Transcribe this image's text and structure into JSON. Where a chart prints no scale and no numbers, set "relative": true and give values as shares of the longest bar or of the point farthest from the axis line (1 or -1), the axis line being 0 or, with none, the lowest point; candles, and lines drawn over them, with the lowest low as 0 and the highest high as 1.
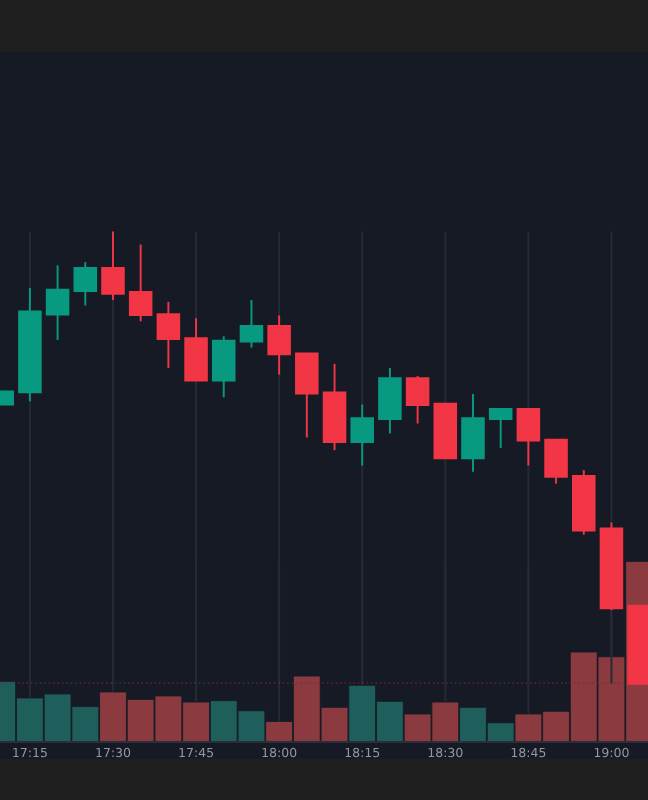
{
  "chart_data": [
    {
      "type": "candlestick",
      "relative": true,
      "tick_labels": false,
      "grid": "x",
      "x": [
        17.1667,
        17.25,
        17.3333,
        17.4167,
        17.5,
        17.5833,
        17.6667,
        17.75,
        17.8333,
        17.9167,
        18.0,
        18.0833,
        18.1667,
        18.25,
        18.3333,
        18.4167,
        18.5,
        18.5833,
        18.6667,
        18.75,
        18.8333,
        18.9167,
        19.0,
        19.0833
      ],
      "ohlc": [
        [
          0.618,
          0.645,
          0.618,
          0.645
        ],
        [
          0.645,
          0.875,
          0.624,
          0.822
        ],
        [
          0.817,
          0.925,
          0.76,
          0.87
        ],
        [
          0.869,
          0.932,
          0.836,
          0.918
        ],
        [
          0.918,
          1.0,
          0.848,
          0.863
        ],
        [
          0.865,
          0.971,
          0.801,
          0.816
        ],
        [
          0.816,
          0.844,
          0.698,
          0.763
        ],
        [
          0.763,
          0.808,
          0.671,
          0.671
        ],
        [
          0.671,
          0.768,
          0.633,
          0.757
        ],
        [
          0.757,
          0.848,
          0.743,
          0.79
        ],
        [
          0.79,
          0.814,
          0.683,
          0.729
        ],
        [
          0.729,
          0.729,
          0.544,
          0.642
        ],
        [
          0.643,
          0.707,
          0.516,
          0.535
        ],
        [
          0.535,
          0.617,
          0.482,
          0.586
        ],
        [
          0.586,
          0.698,
          0.553,
          0.674
        ],
        [
          0.674,
          0.68,
          0.575,
          0.617
        ],
        [
          0.618,
          0.618,
          0.499,
          0.499
        ],
        [
          0.499,
          0.64,
          0.468,
          0.586
        ],
        [
          0.586,
          0.609,
          0.521,
          0.606
        ],
        [
          0.606,
          0.609,
          0.482,
          0.538
        ],
        [
          0.538,
          0.538,
          0.442,
          0.458
        ],
        [
          0.458,
          0.472,
          0.329,
          0.339
        ],
        [
          0.342,
          0.356,
          0.162,
          0.167
        ],
        [
          0.171,
          0.171,
          0.0,
          0.0
        ]
      ],
      "colors": [
        "#089981",
        "#089981",
        "#089981",
        "#089981",
        "#f23645",
        "#f23645",
        "#f23645",
        "#f23645",
        "#089981",
        "#089981",
        "#f23645",
        "#f23645",
        "#f23645",
        "#089981",
        "#089981",
        "#f23645",
        "#f23645",
        "#089981",
        "#089981",
        "#f23645",
        "#f23645",
        "#f23645",
        "#f23645",
        "#f23645"
      ],
      "xlim": [
        17.16,
        19.11
      ],
      "xticks": [
        {
          "value": 17.25,
          "label": null
        },
        {
          "value": 17.5,
          "label": null
        },
        {
          "value": 17.75,
          "label": null
        },
        {
          "value": 18.0,
          "label": null
        },
        {
          "value": 18.25,
          "label": null
        },
        {
          "value": 18.5,
          "label": null
        },
        {
          "value": 18.75,
          "label": null
        },
        {
          "value": 19.0,
          "label": null
        }
      ],
      "ref_lines": [
        {
          "axis": "y",
          "value": 0.0,
          "color": "#7a2a35",
          "line_style": "dotted"
        }
      ]
    },
    {
      "type": "bar",
      "relative": true,
      "tick_labels": "x",
      "grid": "x",
      "x": [
        17.1667,
        17.25,
        17.3333,
        17.4167,
        17.5,
        17.5833,
        17.6667,
        17.75,
        17.8333,
        17.9167,
        18.0,
        18.0833,
        18.1667,
        18.25,
        18.3333,
        18.4167,
        18.5,
        18.5833,
        18.6667,
        18.75,
        18.8333,
        18.9167,
        19.0,
        19.0833
      ],
      "values": [
        0.336,
        0.244,
        0.266,
        0.196,
        0.277,
        0.236,
        0.255,
        0.221,
        0.229,
        0.173,
        0.114,
        0.365,
        0.192,
        0.314,
        0.225,
        0.155,
        0.221,
        0.192,
        0.107,
        0.155,
        0.17,
        0.498,
        0.472,
        1.0
      ],
      "colors": [
        "#1e5f5c",
        "#1e5f5c",
        "#1e5f5c",
        "#1e5f5c",
        "#8b3a40",
        "#8b3a40",
        "#8b3a40",
        "#8b3a40",
        "#1e5f5c",
        "#1e5f5c",
        "#8b3a40",
        "#8b3a40",
        "#8b3a40",
        "#1e5f5c",
        "#1e5f5c",
        "#8b3a40",
        "#8b3a40",
        "#1e5f5c",
        "#1e5f5c",
        "#8b3a40",
        "#8b3a40",
        "#8b3a40",
        "#8b3a40",
        "#8b3a40"
      ],
      "xlim": [
        17.16,
        19.11
      ],
      "xticks": [
        {
          "value": 17.25,
          "label": "17:15"
        },
        {
          "value": 17.5,
          "label": "17:30"
        },
        {
          "value": 17.75,
          "label": "17:45"
        },
        {
          "value": 18.0,
          "label": "18:00"
        },
        {
          "value": 18.25,
          "label": "18:15"
        },
        {
          "value": 18.5,
          "label": "18:30"
        },
        {
          "value": 18.75,
          "label": "18:45"
        },
        {
          "value": 19.0,
          "label": "19:00"
        }
      ]
    }
  ]
}
